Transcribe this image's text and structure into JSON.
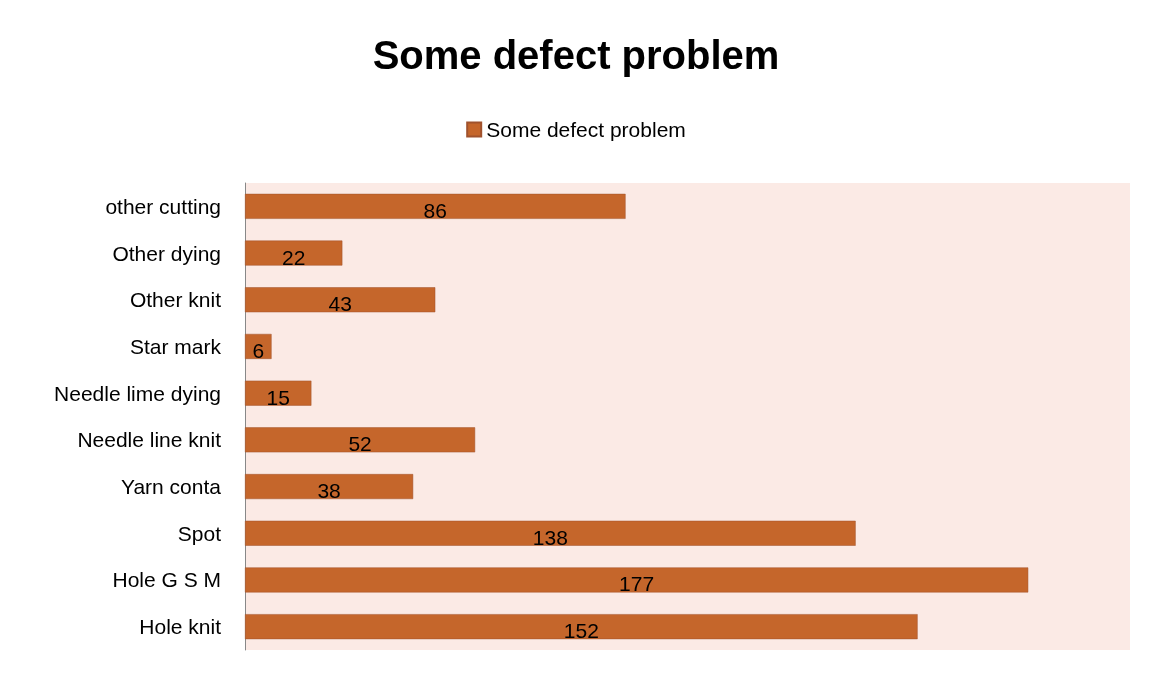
{
  "chart_data": {
    "type": "bar",
    "orientation": "horizontal",
    "title": "Some defect problem",
    "categories": [
      "other cutting",
      "Other dying",
      "Other knit",
      "Star mark",
      "Needle lime dying",
      "Needle line knit",
      "Yarn conta",
      "Spot",
      "Hole G S M",
      "Hole knit"
    ],
    "series": [
      {
        "name": "Some defect problem",
        "color": "#c5662b",
        "values": [
          86,
          22,
          43,
          6,
          15,
          52,
          38,
          138,
          177,
          152
        ]
      }
    ],
    "xlim": [
      0,
      200
    ],
    "data_labels": true,
    "legend": "top",
    "tick_labels": "y"
  }
}
